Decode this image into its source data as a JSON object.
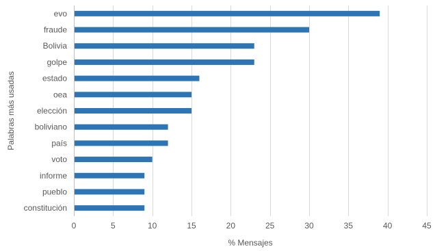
{
  "chart_data": {
    "type": "bar",
    "orientation": "horizontal",
    "categories": [
      "evo",
      "fraude",
      "Bolivia",
      "golpe",
      "estado",
      "oea",
      "elección",
      "boliviano",
      "país",
      "voto",
      "informe",
      "pueblo",
      "constitución"
    ],
    "values": [
      39,
      30,
      23,
      23,
      16,
      15,
      15,
      12,
      12,
      10,
      9,
      9,
      9
    ],
    "xlabel": "% Mensajes",
    "ylabel": "Palabras más usadas",
    "xlim": [
      0,
      45
    ],
    "xticks": [
      0,
      5,
      10,
      15,
      20,
      25,
      30,
      35,
      40,
      45
    ],
    "grid": true,
    "bar_color": "#2e75b6"
  }
}
